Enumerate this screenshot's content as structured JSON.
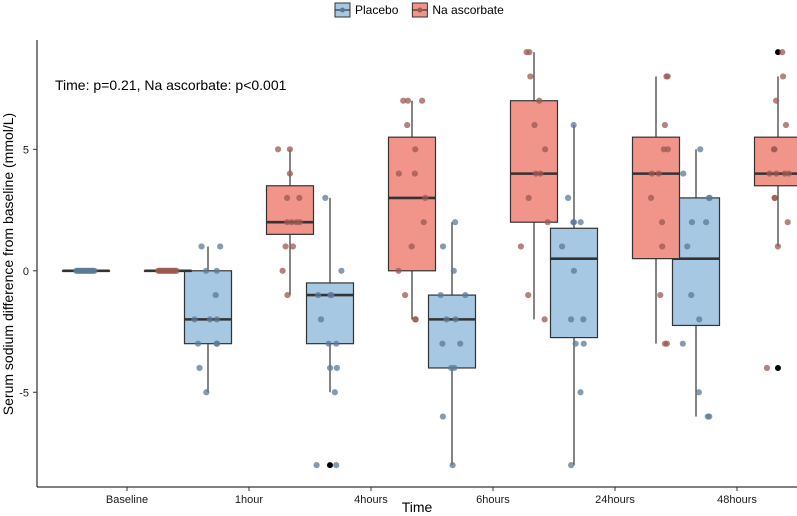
{
  "chart_data": {
    "type": "box",
    "title": "",
    "xlabel": "Time",
    "ylabel": "Serum sodium difference from baseline (mmol/L)",
    "annotation": "Time: p=0.21, Na ascorbate: p<0.001",
    "categories": [
      "Baseline",
      "1hour",
      "4hours",
      "6hours",
      "24hours",
      "48hours"
    ],
    "ylim": [
      -8.9,
      9.5
    ],
    "y_ticks": [
      -5,
      0,
      5
    ],
    "grid": false,
    "legend_position": "top",
    "series": [
      {
        "name": "Placebo",
        "color": "#a6c8e2",
        "point_color": "#5c7a98",
        "boxes": [
          {
            "q1": 0,
            "median": 0,
            "q3": 0,
            "whisker_low": 0,
            "whisker_high": 0,
            "outliers": []
          },
          {
            "q1": -3,
            "median": -2,
            "q3": 0,
            "whisker_low": -5,
            "whisker_high": 1,
            "outliers": []
          },
          {
            "q1": -3,
            "median": -1,
            "q3": -0.5,
            "whisker_low": -5,
            "whisker_high": 3,
            "outliers": [
              -8
            ]
          },
          {
            "q1": -4,
            "median": -2,
            "q3": -1,
            "whisker_low": -8,
            "whisker_high": 2,
            "outliers": []
          },
          {
            "q1": -2.75,
            "median": 0.5,
            "q3": 1.75,
            "whisker_low": -8,
            "whisker_high": 6,
            "outliers": []
          },
          {
            "q1": -2.25,
            "median": 0.5,
            "q3": 3,
            "whisker_low": -6,
            "whisker_high": 5,
            "outliers": []
          }
        ],
        "points": [
          [
            0,
            0,
            0,
            0,
            0,
            0,
            0,
            0,
            0,
            0,
            0,
            0,
            0,
            0,
            0
          ],
          [
            1,
            1,
            0,
            0,
            -1,
            -2,
            -2,
            -2,
            -3,
            -3,
            -3,
            -4,
            -5
          ],
          [
            3,
            0,
            -1,
            -1,
            -1,
            -2,
            -3,
            -3,
            -4,
            -4,
            -5,
            -8,
            -8
          ],
          [
            2,
            1,
            0,
            -1,
            -1,
            -2,
            -2,
            -3,
            -3,
            -4,
            -4,
            -6,
            -8
          ],
          [
            6,
            3,
            2,
            2,
            2,
            1,
            0,
            -2,
            -2,
            -3,
            -3,
            -5,
            -8
          ],
          [
            5,
            4,
            3,
            3,
            2,
            2,
            1,
            -1,
            -2,
            -3,
            -5,
            -6,
            -6
          ]
        ]
      },
      {
        "name": "Na ascorbate",
        "color": "#f1958a",
        "point_color": "#9b5a52",
        "boxes": [
          {
            "q1": 0,
            "median": 0,
            "q3": 0,
            "whisker_low": 0,
            "whisker_high": 0,
            "outliers": []
          },
          {
            "q1": 1.5,
            "median": 2,
            "q3": 3.5,
            "whisker_low": -1,
            "whisker_high": 5,
            "outliers": []
          },
          {
            "q1": 0,
            "median": 3,
            "q3": 5.5,
            "whisker_low": -2,
            "whisker_high": 7,
            "outliers": []
          },
          {
            "q1": 2,
            "median": 4,
            "q3": 7,
            "whisker_low": -2,
            "whisker_high": 9,
            "outliers": []
          },
          {
            "q1": 0.5,
            "median": 4,
            "q3": 5.5,
            "whisker_low": -3,
            "whisker_high": 8,
            "outliers": []
          },
          {
            "q1": 3.5,
            "median": 4,
            "q3": 5.5,
            "whisker_low": 1,
            "whisker_high": 8,
            "outliers": [
              9,
              -4
            ]
          }
        ],
        "points": [
          [
            0,
            0,
            0,
            0,
            0,
            0,
            0,
            0,
            0,
            0,
            0,
            0,
            0,
            0,
            0
          ],
          [
            5,
            5,
            4,
            3,
            3,
            2,
            2,
            2,
            2,
            1,
            1,
            0,
            -1
          ],
          [
            7,
            7,
            7,
            6,
            5,
            4,
            4,
            3,
            2,
            1,
            0,
            -1,
            -2,
            -2
          ],
          [
            9,
            9,
            8,
            7,
            6,
            5,
            4,
            4,
            3,
            2,
            1,
            -1,
            -2
          ],
          [
            8,
            8,
            6,
            5,
            5,
            4,
            4,
            3,
            2,
            1,
            -1,
            -3,
            -3
          ],
          [
            9,
            8,
            7,
            6,
            5,
            5,
            4,
            4,
            4,
            4,
            3,
            3,
            2,
            1,
            -4
          ]
        ]
      }
    ]
  }
}
